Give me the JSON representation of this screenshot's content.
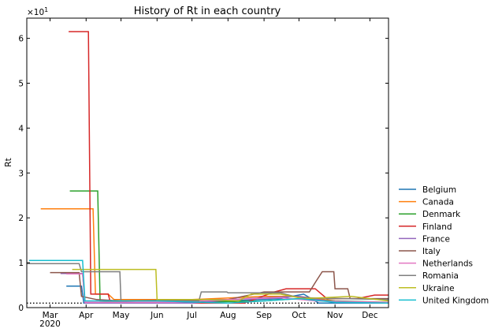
{
  "chart_data": {
    "type": "line",
    "title": "History of Rt in each country",
    "xlabel": "",
    "ylabel": "Rt",
    "y_multiplier_label": "×10^1",
    "y_multiplier_base": "×10",
    "y_multiplier_exp": "1",
    "ylim": [
      0,
      6.45
    ],
    "yticks": [
      0,
      1,
      2,
      3,
      4,
      5,
      6
    ],
    "ytick_labels": [
      "0",
      "1",
      "2",
      "3",
      "4",
      "5",
      "6"
    ],
    "xlim": [
      "2020-02-10",
      "2020-12-17"
    ],
    "xticks": [
      "2020-03-01",
      "2020-04-01",
      "2020-05-01",
      "2020-06-01",
      "2020-07-01",
      "2020-08-01",
      "2020-09-01",
      "2020-10-01",
      "2020-11-01",
      "2020-12-01"
    ],
    "xtick_labels": [
      "Mar",
      "Apr",
      "May",
      "Jun",
      "Jul",
      "Aug",
      "Sep",
      "Oct",
      "Nov",
      "Dec"
    ],
    "xtick_sublabel": "2020",
    "reference_line": {
      "y": 0.1,
      "style": "dotted"
    },
    "legend_position": "right",
    "series": [
      {
        "name": "Belgium",
        "color": "#1f77b4",
        "points": [
          [
            "2020-03-15",
            0.48
          ],
          [
            "2020-03-28",
            0.48
          ],
          [
            "2020-03-30",
            0.1
          ],
          [
            "2020-06-01",
            0.1
          ],
          [
            "2020-08-01",
            0.15
          ],
          [
            "2020-09-15",
            0.2
          ],
          [
            "2020-10-05",
            0.3
          ],
          [
            "2020-10-18",
            0.1
          ],
          [
            "2020-12-17",
            0.1
          ]
        ]
      },
      {
        "name": "Canada",
        "color": "#ff7f0e",
        "points": [
          [
            "2020-02-22",
            2.2
          ],
          [
            "2020-04-07",
            2.2
          ],
          [
            "2020-04-09",
            0.3
          ],
          [
            "2020-04-20",
            0.3
          ],
          [
            "2020-04-25",
            0.18
          ],
          [
            "2020-07-01",
            0.18
          ],
          [
            "2020-09-01",
            0.25
          ],
          [
            "2020-10-01",
            0.25
          ],
          [
            "2020-11-01",
            0.15
          ],
          [
            "2020-12-17",
            0.1
          ]
        ]
      },
      {
        "name": "Denmark",
        "color": "#2ca02c",
        "points": [
          [
            "2020-03-18",
            2.6
          ],
          [
            "2020-04-11",
            2.6
          ],
          [
            "2020-04-13",
            0.15
          ],
          [
            "2020-06-01",
            0.1
          ],
          [
            "2020-09-01",
            0.15
          ],
          [
            "2020-10-01",
            0.2
          ],
          [
            "2020-11-01",
            0.15
          ],
          [
            "2020-12-17",
            0.12
          ]
        ]
      },
      {
        "name": "Finland",
        "color": "#d62728",
        "points": [
          [
            "2020-03-17",
            6.15
          ],
          [
            "2020-04-03",
            6.15
          ],
          [
            "2020-04-05",
            0.3
          ],
          [
            "2020-04-20",
            0.3
          ],
          [
            "2020-04-22",
            0.1
          ],
          [
            "2020-08-15",
            0.1
          ],
          [
            "2020-09-10",
            0.35
          ],
          [
            "2020-09-20",
            0.42
          ],
          [
            "2020-10-15",
            0.42
          ],
          [
            "2020-10-25",
            0.2
          ],
          [
            "2020-11-20",
            0.2
          ],
          [
            "2020-12-05",
            0.28
          ],
          [
            "2020-12-17",
            0.28
          ]
        ]
      },
      {
        "name": "France",
        "color": "#9467bd",
        "points": [
          [
            "2020-03-10",
            0.76
          ],
          [
            "2020-03-29",
            0.76
          ],
          [
            "2020-03-31",
            0.1
          ],
          [
            "2020-07-01",
            0.1
          ],
          [
            "2020-08-15",
            0.2
          ],
          [
            "2020-10-01",
            0.25
          ],
          [
            "2020-11-01",
            0.12
          ],
          [
            "2020-12-17",
            0.1
          ]
        ]
      },
      {
        "name": "Italy",
        "color": "#8c564b",
        "points": [
          [
            "2020-03-01",
            0.78
          ],
          [
            "2020-03-26",
            0.78
          ],
          [
            "2020-03-28",
            0.25
          ],
          [
            "2020-04-10",
            0.18
          ],
          [
            "2020-05-01",
            0.15
          ],
          [
            "2020-08-01",
            0.18
          ],
          [
            "2020-09-01",
            0.35
          ],
          [
            "2020-10-10",
            0.35
          ],
          [
            "2020-10-16",
            0.6
          ],
          [
            "2020-10-21",
            0.8
          ],
          [
            "2020-10-31",
            0.8
          ],
          [
            "2020-11-01",
            0.42
          ],
          [
            "2020-11-12",
            0.42
          ],
          [
            "2020-11-14",
            0.2
          ],
          [
            "2020-12-17",
            0.2
          ]
        ]
      },
      {
        "name": "Netherlands",
        "color": "#e377c2",
        "points": [
          [
            "2020-03-15",
            0.75
          ],
          [
            "2020-03-29",
            0.75
          ],
          [
            "2020-03-31",
            0.12
          ],
          [
            "2020-06-15",
            0.12
          ],
          [
            "2020-08-01",
            0.18
          ],
          [
            "2020-09-15",
            0.22
          ],
          [
            "2020-10-15",
            0.15
          ],
          [
            "2020-12-17",
            0.12
          ]
        ]
      },
      {
        "name": "Romania",
        "color": "#7f7f7f",
        "points": [
          [
            "2020-02-10",
            0.98
          ],
          [
            "2020-03-26",
            0.98
          ],
          [
            "2020-03-28",
            0.8
          ],
          [
            "2020-04-30",
            0.8
          ],
          [
            "2020-05-01",
            0.15
          ],
          [
            "2020-07-07",
            0.15
          ],
          [
            "2020-07-09",
            0.35
          ],
          [
            "2020-07-31",
            0.35
          ],
          [
            "2020-08-01",
            0.33
          ],
          [
            "2020-09-15",
            0.33
          ],
          [
            "2020-10-01",
            0.22
          ],
          [
            "2020-12-17",
            0.18
          ]
        ]
      },
      {
        "name": "Ukraine",
        "color": "#bcbd22",
        "points": [
          [
            "2020-03-20",
            0.85
          ],
          [
            "2020-05-31",
            0.85
          ],
          [
            "2020-06-01",
            0.18
          ],
          [
            "2020-07-15",
            0.18
          ],
          [
            "2020-08-10",
            0.15
          ],
          [
            "2020-08-21",
            0.3
          ],
          [
            "2020-09-15",
            0.3
          ],
          [
            "2020-10-05",
            0.2
          ],
          [
            "2020-11-15",
            0.25
          ],
          [
            "2020-12-17",
            0.15
          ]
        ]
      },
      {
        "name": "United Kingdom",
        "color": "#17becf",
        "points": [
          [
            "2020-02-12",
            1.05
          ],
          [
            "2020-03-29",
            1.05
          ],
          [
            "2020-03-31",
            0.15
          ],
          [
            "2020-06-01",
            0.15
          ],
          [
            "2020-08-01",
            0.1
          ],
          [
            "2020-09-01",
            0.15
          ],
          [
            "2020-10-01",
            0.2
          ],
          [
            "2020-11-01",
            0.12
          ],
          [
            "2020-12-17",
            0.1
          ]
        ]
      }
    ]
  }
}
